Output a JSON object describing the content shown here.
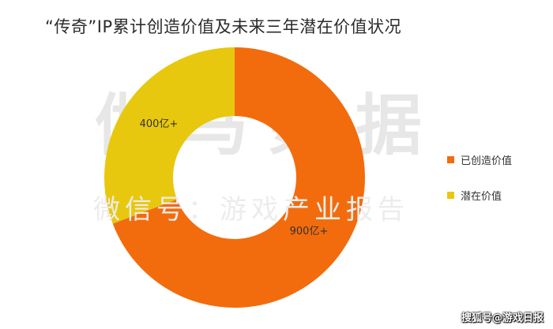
{
  "title": "“传奇”IP累计创造价值及未来三年潜在价值状况",
  "watermark": {
    "main": "伽马数据",
    "sub": "微信号：游戏产业报告"
  },
  "footer_credit": "搜狐号@游戏日报",
  "chart_data": {
    "type": "pie",
    "title": "“传奇”IP累计创造价值及未来三年潜在价值状况",
    "donut": true,
    "legend_position": "right",
    "slices": [
      {
        "label": "已创造价值",
        "value": 900,
        "data_label": "900亿+",
        "color": "#f26c0d"
      },
      {
        "label": "潜在价值",
        "value": 400,
        "data_label": "400亿+",
        "color": "#e8c80e"
      }
    ]
  }
}
